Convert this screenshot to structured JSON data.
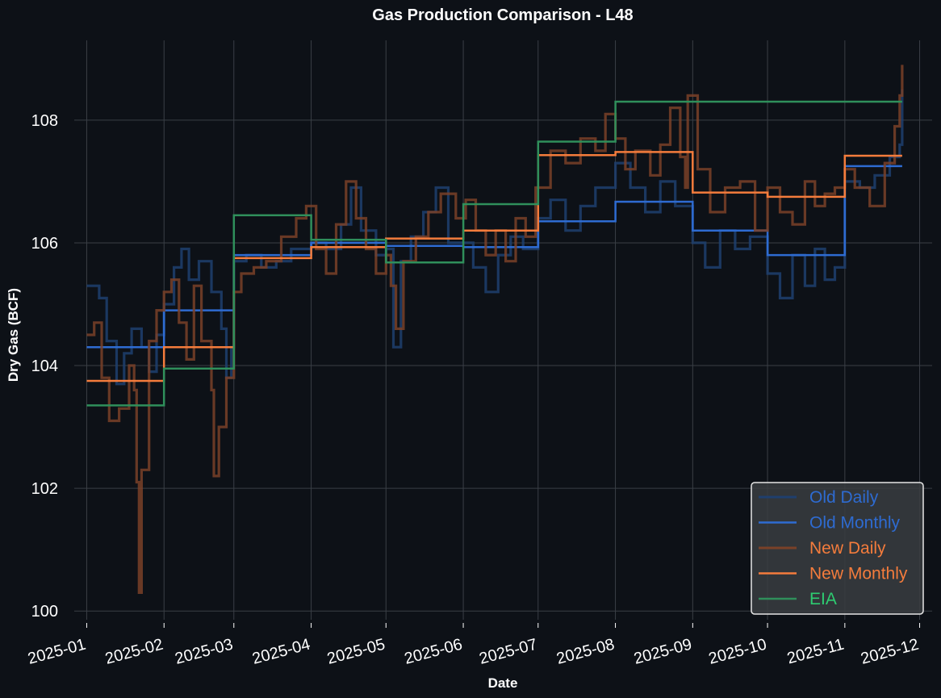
{
  "chart_data": {
    "type": "line",
    "title": "Gas Production Comparison - L48",
    "xlabel": "Date",
    "ylabel": "Dry Gas (BCF)",
    "ylim": [
      99.7,
      109.3
    ],
    "y_ticks": [
      100,
      102,
      104,
      106,
      108
    ],
    "y_tick_labels": [
      "100",
      "102",
      "104",
      "106",
      "108"
    ],
    "x_ticks": [
      "2025-01",
      "2025-02",
      "2025-03",
      "2025-04",
      "2025-05",
      "2025-06",
      "2025-07",
      "2025-08",
      "2025-09",
      "2025-10",
      "2025-11",
      "2025-12"
    ],
    "x_range_days": [
      -5,
      339
    ],
    "month_starts_day": [
      0,
      31,
      59,
      90,
      120,
      151,
      181,
      212,
      243,
      273,
      304,
      334
    ],
    "grid": true,
    "legend_position": "lower-right",
    "series": [
      {
        "name": "Old Daily",
        "style": "daily",
        "color": "#1f3f6e",
        "points": [
          [
            0,
            105.3
          ],
          [
            5,
            105.1
          ],
          [
            8,
            104.4
          ],
          [
            12,
            103.7
          ],
          [
            15,
            104.2
          ],
          [
            18,
            104.6
          ],
          [
            22,
            104.3
          ],
          [
            25,
            103.9
          ],
          [
            28,
            104.5
          ],
          [
            31,
            105.0
          ],
          [
            35,
            105.6
          ],
          [
            38,
            105.9
          ],
          [
            41,
            105.4
          ],
          [
            45,
            105.7
          ],
          [
            50,
            105.2
          ],
          [
            54,
            104.6
          ],
          [
            56,
            103.8
          ],
          [
            58,
            104.3
          ],
          [
            59,
            105.7
          ],
          [
            64,
            105.8
          ],
          [
            70,
            105.6
          ],
          [
            76,
            105.7
          ],
          [
            82,
            105.9
          ],
          [
            90,
            106.0
          ],
          [
            96,
            105.9
          ],
          [
            102,
            106.3
          ],
          [
            106,
            106.9
          ],
          [
            110,
            106.2
          ],
          [
            116,
            105.8
          ],
          [
            120,
            105.9
          ],
          [
            123,
            104.3
          ],
          [
            126,
            105.7
          ],
          [
            130,
            106.1
          ],
          [
            135,
            106.5
          ],
          [
            140,
            106.9
          ],
          [
            145,
            106.0
          ],
          [
            151,
            106.0
          ],
          [
            155,
            105.6
          ],
          [
            160,
            105.2
          ],
          [
            165,
            105.8
          ],
          [
            170,
            106.1
          ],
          [
            175,
            105.9
          ],
          [
            181,
            106.4
          ],
          [
            186,
            106.7
          ],
          [
            192,
            106.2
          ],
          [
            198,
            106.6
          ],
          [
            204,
            106.9
          ],
          [
            212,
            107.3
          ],
          [
            218,
            106.9
          ],
          [
            224,
            106.5
          ],
          [
            230,
            107.0
          ],
          [
            236,
            106.6
          ],
          [
            243,
            106.0
          ],
          [
            248,
            105.6
          ],
          [
            254,
            106.2
          ],
          [
            260,
            105.9
          ],
          [
            266,
            106.1
          ],
          [
            273,
            105.5
          ],
          [
            278,
            105.1
          ],
          [
            283,
            105.8
          ],
          [
            288,
            105.3
          ],
          [
            292,
            105.9
          ],
          [
            296,
            105.4
          ],
          [
            300,
            105.6
          ],
          [
            304,
            107.0
          ],
          [
            310,
            106.9
          ],
          [
            316,
            107.1
          ],
          [
            322,
            107.4
          ],
          [
            326,
            107.6
          ],
          [
            327,
            108.5
          ]
        ]
      },
      {
        "name": "Old Monthly",
        "style": "monthly",
        "color": "#2e6bd1",
        "steps": [
          [
            0,
            31,
            104.3
          ],
          [
            31,
            59,
            104.9
          ],
          [
            59,
            90,
            105.8
          ],
          [
            90,
            120,
            106.0
          ],
          [
            120,
            151,
            105.95
          ],
          [
            151,
            181,
            105.93
          ],
          [
            181,
            212,
            106.35
          ],
          [
            212,
            243,
            106.67
          ],
          [
            243,
            273,
            106.2
          ],
          [
            273,
            304,
            105.8
          ],
          [
            304,
            327,
            107.25
          ]
        ]
      },
      {
        "name": "New Daily",
        "style": "daily",
        "color": "#7a4128",
        "points": [
          [
            0,
            104.5
          ],
          [
            3,
            104.7
          ],
          [
            6,
            103.8
          ],
          [
            9,
            103.1
          ],
          [
            13,
            103.3
          ],
          [
            17,
            104.0
          ],
          [
            19,
            103.6
          ],
          [
            20,
            102.1
          ],
          [
            21,
            100.3
          ],
          [
            22,
            102.3
          ],
          [
            25,
            104.4
          ],
          [
            28,
            104.9
          ],
          [
            31,
            105.2
          ],
          [
            34,
            105.4
          ],
          [
            37,
            104.7
          ],
          [
            40,
            104.1
          ],
          [
            43,
            105.3
          ],
          [
            46,
            104.4
          ],
          [
            50,
            103.6
          ],
          [
            51,
            102.2
          ],
          [
            53,
            103.0
          ],
          [
            56,
            103.8
          ],
          [
            59,
            105.2
          ],
          [
            62,
            105.5
          ],
          [
            67,
            105.6
          ],
          [
            72,
            105.7
          ],
          [
            78,
            106.1
          ],
          [
            84,
            106.4
          ],
          [
            88,
            106.6
          ],
          [
            92,
            105.9
          ],
          [
            96,
            105.5
          ],
          [
            100,
            106.3
          ],
          [
            104,
            107.0
          ],
          [
            108,
            106.4
          ],
          [
            112,
            105.9
          ],
          [
            116,
            105.5
          ],
          [
            120,
            105.8
          ],
          [
            122,
            105.3
          ],
          [
            124,
            104.6
          ],
          [
            127,
            105.7
          ],
          [
            132,
            106.1
          ],
          [
            137,
            106.5
          ],
          [
            142,
            106.8
          ],
          [
            148,
            106.4
          ],
          [
            152,
            106.7
          ],
          [
            156,
            106.2
          ],
          [
            160,
            105.8
          ],
          [
            164,
            106.2
          ],
          [
            168,
            105.7
          ],
          [
            172,
            106.4
          ],
          [
            176,
            106.1
          ],
          [
            180,
            106.9
          ],
          [
            186,
            107.5
          ],
          [
            192,
            107.3
          ],
          [
            198,
            107.7
          ],
          [
            204,
            107.5
          ],
          [
            208,
            108.1
          ],
          [
            212,
            107.7
          ],
          [
            216,
            107.2
          ],
          [
            220,
            107.5
          ],
          [
            226,
            107.1
          ],
          [
            230,
            107.6
          ],
          [
            234,
            108.2
          ],
          [
            238,
            107.4
          ],
          [
            240,
            106.9
          ],
          [
            241,
            108.4
          ],
          [
            245,
            107.2
          ],
          [
            250,
            106.5
          ],
          [
            256,
            106.9
          ],
          [
            262,
            107.0
          ],
          [
            268,
            106.2
          ],
          [
            273,
            106.9
          ],
          [
            278,
            106.5
          ],
          [
            283,
            106.3
          ],
          [
            288,
            107.0
          ],
          [
            292,
            106.6
          ],
          [
            296,
            106.8
          ],
          [
            300,
            106.9
          ],
          [
            304,
            107.2
          ],
          [
            308,
            106.9
          ],
          [
            314,
            106.6
          ],
          [
            320,
            107.3
          ],
          [
            324,
            107.9
          ],
          [
            326,
            108.4
          ],
          [
            327,
            108.9
          ]
        ]
      },
      {
        "name": "New Monthly",
        "style": "monthly",
        "color": "#f47c3c",
        "steps": [
          [
            0,
            31,
            103.75
          ],
          [
            31,
            59,
            104.3
          ],
          [
            59,
            90,
            105.75
          ],
          [
            90,
            120,
            105.93
          ],
          [
            120,
            151,
            106.07
          ],
          [
            151,
            181,
            106.2
          ],
          [
            181,
            212,
            107.43
          ],
          [
            212,
            243,
            107.48
          ],
          [
            243,
            273,
            106.82
          ],
          [
            273,
            304,
            106.75
          ],
          [
            304,
            327,
            107.42
          ]
        ]
      },
      {
        "name": "EIA",
        "style": "monthly",
        "color": "#2f8f5b",
        "steps": [
          [
            0,
            31,
            103.35
          ],
          [
            31,
            59,
            103.95
          ],
          [
            59,
            90,
            106.45
          ],
          [
            90,
            120,
            106.05
          ],
          [
            120,
            151,
            105.68
          ],
          [
            151,
            181,
            106.63
          ],
          [
            181,
            212,
            107.65
          ],
          [
            212,
            327,
            108.3
          ]
        ]
      }
    ]
  }
}
